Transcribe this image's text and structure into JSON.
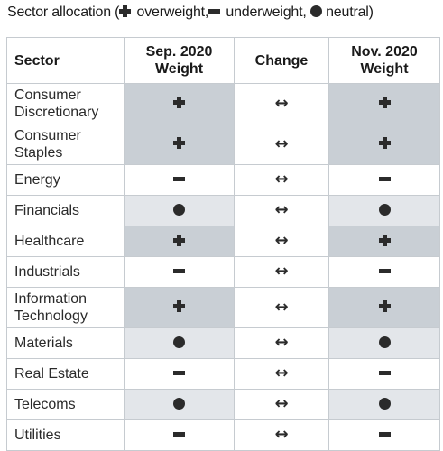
{
  "caption": {
    "prefix": "Sector allocation (",
    "overweight": " overweight,",
    "underweight": " underweight,",
    "neutral": " neutral)"
  },
  "headers": {
    "sector": "Sector",
    "sep_line1": "Sep. 2020",
    "sep_line2": "Weight",
    "change": "Change",
    "nov_line1": "Nov. 2020",
    "nov_line2": "Weight"
  },
  "change_symbol": "↔",
  "rows": [
    {
      "sector": "Consumer Discretionary",
      "sep": "overweight",
      "nov": "overweight"
    },
    {
      "sector": "Consumer Staples",
      "sep": "overweight",
      "nov": "overweight"
    },
    {
      "sector": "Energy",
      "sep": "underweight",
      "nov": "underweight"
    },
    {
      "sector": "Financials",
      "sep": "neutral",
      "nov": "neutral"
    },
    {
      "sector": "Healthcare",
      "sep": "overweight",
      "nov": "overweight"
    },
    {
      "sector": "Industrials",
      "sep": "underweight",
      "nov": "underweight"
    },
    {
      "sector": "Information Technology",
      "sep": "overweight",
      "nov": "overweight"
    },
    {
      "sector": "Materials",
      "sep": "neutral",
      "nov": "neutral"
    },
    {
      "sector": "Real Estate",
      "sep": "underweight",
      "nov": "underweight"
    },
    {
      "sector": "Telecoms",
      "sep": "neutral",
      "nov": "neutral"
    },
    {
      "sector": "Utilities",
      "sep": "underweight",
      "nov": "underweight"
    }
  ],
  "colors": {
    "overweight_fill": "#c9cfd5",
    "neutral_fill": "#e3e6ea",
    "underweight_fill": "#ffffff",
    "grid": "#c6cbd0"
  }
}
